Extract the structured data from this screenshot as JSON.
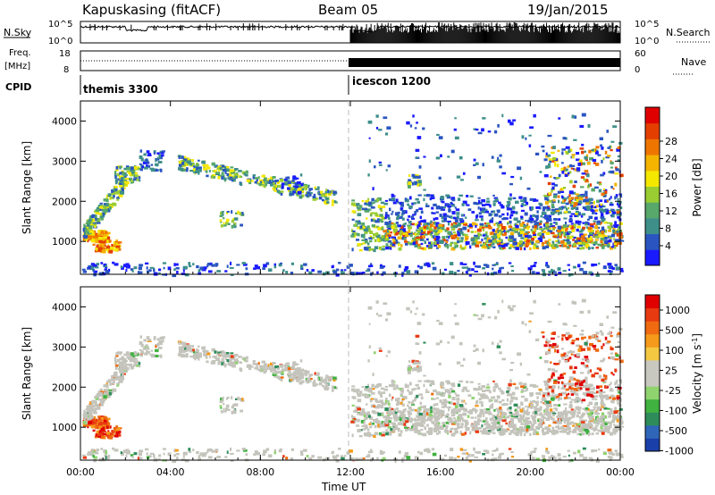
{
  "header": {
    "station": "Kapuskasing (fitACF)",
    "beam": "Beam 05",
    "date": "19/Jan/2015"
  },
  "panels": {
    "nsky": {
      "label": "N.Sky",
      "ticks_left": [
        "10^5",
        "10^0"
      ],
      "right_label": "N.Search",
      "ticks_right": [
        "10^5",
        "10^0"
      ]
    },
    "freq": {
      "label_top": "Freq.",
      "label_unit": "[MHz]",
      "ticks_left": [
        "18",
        "8"
      ],
      "right_label": "Nave",
      "ticks_right": [
        "60",
        "0"
      ]
    },
    "cpid": {
      "label": "CPID",
      "segments": [
        {
          "name": "themis 3300",
          "start_hour": 0
        },
        {
          "name": "icescon 1200",
          "start_hour": 12
        }
      ]
    }
  },
  "chart_data": [
    {
      "type": "heatmap",
      "name": "power",
      "ylabel": "Slant Range [km]",
      "ylim": [
        180,
        4500
      ],
      "yticks": [
        1000,
        2000,
        3000,
        4000
      ],
      "xlim": [
        0,
        24
      ],
      "colorbar": {
        "label": "Power [dB]",
        "ticks": [
          4,
          8,
          12,
          16,
          20,
          24,
          28
        ],
        "colors": [
          "#1a1aff",
          "#2a55c0",
          "#3e8f8a",
          "#57a86a",
          "#9acd32",
          "#f5e800",
          "#f4b400",
          "#ee7600",
          "#e43f00",
          "#e00000"
        ]
      }
    },
    {
      "type": "heatmap",
      "name": "velocity",
      "ylabel": "Slant Range [km]",
      "ylim": [
        180,
        4500
      ],
      "yticks": [
        1000,
        2000,
        3000,
        4000
      ],
      "xlim": [
        0,
        24
      ],
      "colorbar": {
        "label": "Velocity [m s^-1]",
        "ticks": [
          "1000",
          "500",
          "100",
          "25",
          "-25",
          "-100",
          "-500",
          "-1000"
        ],
        "colors": [
          "#1a3fa8",
          "#2f66b8",
          "#2e8c5a",
          "#3fb23f",
          "#8fd36f",
          "#c8c8c0",
          "#c8c8c0",
          "#f5c842",
          "#f59a1a",
          "#ef6a10",
          "#e83a10",
          "#e00000"
        ]
      }
    }
  ],
  "xaxis": {
    "label": "Time UT",
    "ticks": [
      "00:00",
      "04:00",
      "08:00",
      "12:00",
      "16:00",
      "20:00",
      "00:00"
    ]
  }
}
